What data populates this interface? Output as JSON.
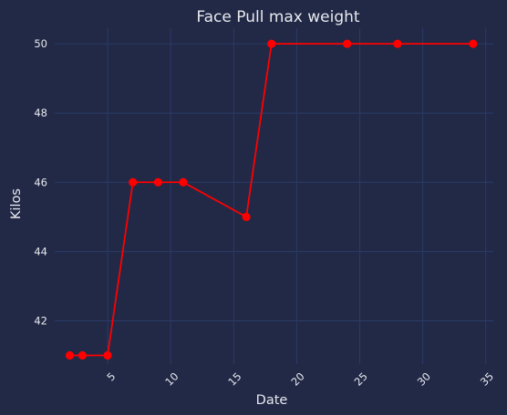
{
  "chart_data": {
    "type": "line",
    "title": "Face Pull max weight",
    "xlabel": "Date",
    "ylabel": "Kilos",
    "xlim": [
      0.8,
      35.6
    ],
    "ylim": [
      40.75,
      50.45
    ],
    "xticks": [
      5,
      10,
      15,
      20,
      25,
      30,
      35
    ],
    "yticks": [
      42,
      44,
      46,
      48,
      50
    ],
    "grid": true,
    "series": [
      {
        "color": "#ff0000",
        "x": [
          2,
          3,
          5,
          7,
          9,
          11,
          16,
          18,
          24,
          28,
          34
        ],
        "y": [
          41,
          41,
          41,
          46,
          46,
          46,
          45,
          50,
          50,
          50,
          50
        ]
      }
    ]
  },
  "colors": {
    "background": "#212946",
    "grid": "#2a3a68",
    "text": "#e8e8ee",
    "series": "#ff0000"
  }
}
